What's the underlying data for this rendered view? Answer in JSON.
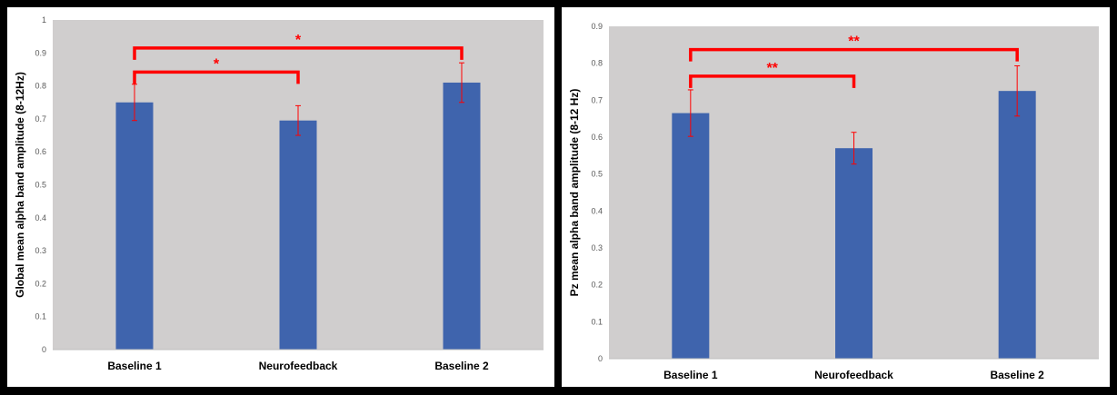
{
  "chart_data": [
    {
      "type": "bar",
      "categories": [
        "Baseline 1",
        "Neurofeedback",
        "Baseline 2"
      ],
      "values": [
        0.75,
        0.695,
        0.81
      ],
      "errors": [
        0.055,
        0.045,
        0.06
      ],
      "ylabel": "Global mean alpha band amplitude (8-12Hz)",
      "ylim": [
        0,
        1
      ],
      "yticks": [
        "0",
        "0.1",
        "0.2",
        "0.3",
        "0.4",
        "0.5",
        "0.6",
        "0.7",
        "0.8",
        "0.9",
        "1"
      ],
      "grid": false,
      "bar_color": "#3f64ad",
      "error_color": "#ff0000",
      "plot_bg": "#d0cece",
      "significance": [
        {
          "from": 0,
          "to": 1,
          "label": "*"
        },
        {
          "from": 0,
          "to": 2,
          "label": "*"
        }
      ]
    },
    {
      "type": "bar",
      "categories": [
        "Baseline 1",
        "Neurofeedback",
        "Baseline 2"
      ],
      "values": [
        0.665,
        0.57,
        0.725
      ],
      "errors": [
        0.063,
        0.043,
        0.068
      ],
      "ylabel": "Pz mean alpha band amplitude (8-12 Hz)",
      "ylim": [
        0,
        0.9
      ],
      "yticks": [
        "0",
        "0.1",
        "0.2",
        "0.3",
        "0.4",
        "0.5",
        "0.6",
        "0.7",
        "0.8",
        "0.9"
      ],
      "grid": false,
      "bar_color": "#3f64ad",
      "error_color": "#ff0000",
      "plot_bg": "#d0cece",
      "significance": [
        {
          "from": 0,
          "to": 1,
          "label": "**"
        },
        {
          "from": 0,
          "to": 2,
          "label": "**"
        }
      ]
    }
  ]
}
